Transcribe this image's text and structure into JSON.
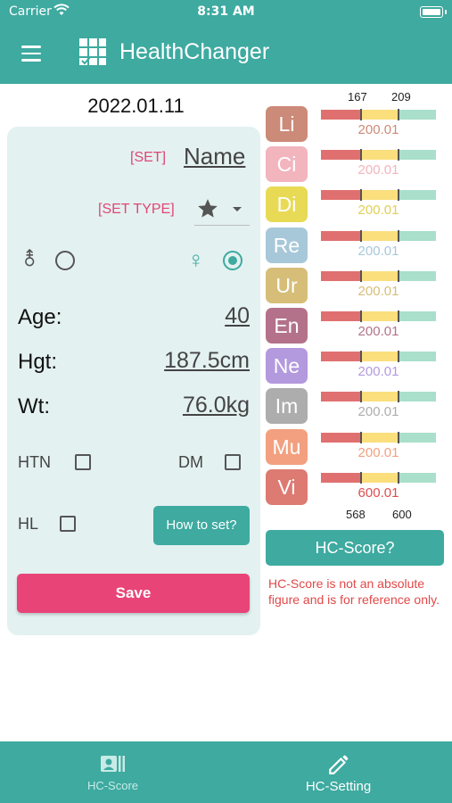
{
  "status_bar": {
    "carrier": "Carrier",
    "time": "8:31 AM"
  },
  "app": {
    "title": "HealthChanger",
    "menu_icon": "menu-icon",
    "logo_icon": "grid-check-icon"
  },
  "date": "2022.01.11",
  "form": {
    "set_label": "[SET]",
    "name_value": "Name",
    "set_type_label": "[SET TYPE]",
    "set_type_icon": "star-icon",
    "sex": {
      "male_symbol": "⚨",
      "female_symbol": "♀",
      "selected": "female"
    },
    "age": {
      "label": "Age:",
      "value": "40"
    },
    "height": {
      "label": "Hgt:",
      "value": "187.5cm"
    },
    "weight": {
      "label": "Wt:",
      "value": "76.0kg"
    },
    "conditions": {
      "htn_label": "HTN",
      "dm_label": "DM",
      "hl_label": "HL"
    },
    "how_to_set_label": "How to set?",
    "save_label": "Save"
  },
  "scores": {
    "top_range": {
      "low": "167",
      "high": "209"
    },
    "bottom_range": {
      "low": "568",
      "high": "600"
    },
    "items": [
      {
        "abbr": "Li",
        "value": "200.01",
        "color": "#cc8a78",
        "text_color": "#cc8a78"
      },
      {
        "abbr": "Ci",
        "value": "200.01",
        "color": "#f2b4bd",
        "text_color": "#f2b4bd"
      },
      {
        "abbr": "Di",
        "value": "200.01",
        "color": "#e8da55",
        "text_color": "#e0cf55"
      },
      {
        "abbr": "Re",
        "value": "200.01",
        "color": "#a7c8d9",
        "text_color": "#a7c8d9"
      },
      {
        "abbr": "Ur",
        "value": "200.01",
        "color": "#d6be78",
        "text_color": "#d6be78"
      },
      {
        "abbr": "En",
        "value": "200.01",
        "color": "#b3728a",
        "text_color": "#b3728a"
      },
      {
        "abbr": "Ne",
        "value": "200.01",
        "color": "#b399de",
        "text_color": "#b399de"
      },
      {
        "abbr": "Im",
        "value": "200.01",
        "color": "#adadad",
        "text_color": "#adadad"
      },
      {
        "abbr": "Mu",
        "value": "200.01",
        "color": "#f2a080",
        "text_color": "#f2a080"
      },
      {
        "abbr": "Vi",
        "value": "600.01",
        "color": "#dd7a72",
        "text_color": "#dd4e4e"
      }
    ],
    "bar_colors": {
      "low": "#e07070",
      "mid": "#fbdf7d",
      "high": "#a9dfcb"
    },
    "hc_score_button": "HC-Score?",
    "note": "HC-Score is not an absolute figure and is for reference only."
  },
  "tabs": [
    {
      "label": "HC-Score",
      "icon": "id-card-icon",
      "active": false
    },
    {
      "label": "HC-Setting",
      "icon": "pencil-icon",
      "active": true
    }
  ],
  "colors": {
    "primary": "#3eaaa0",
    "accent": "#e84478"
  }
}
